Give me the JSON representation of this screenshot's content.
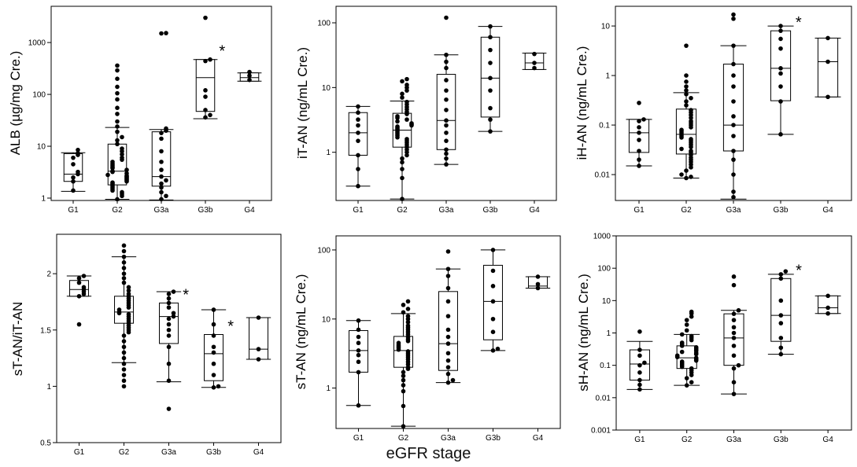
{
  "x_title": "eGFR stage",
  "chart_data": [
    {
      "type": "box",
      "ylabel": "ALB (µg/mg Cre.)",
      "yscale": "log",
      "ylim": [
        0.9,
        5000
      ],
      "yticks": [
        1,
        10,
        100,
        1000
      ],
      "ytick_labels": [
        "1",
        "10",
        "100",
        "1000"
      ],
      "categories": [
        "G1",
        "G2",
        "G3a",
        "G3b",
        "G4"
      ],
      "boxes": [
        {
          "whislo": 1.35,
          "q1": 2.1,
          "med": 2.9,
          "q3": 7.2,
          "whishi": 7.5
        },
        {
          "whislo": 0.95,
          "q1": 1.8,
          "med": 3.3,
          "q3": 11,
          "whishi": 23
        },
        {
          "whislo": 0.92,
          "q1": 1.7,
          "med": 2.6,
          "q3": 19,
          "whishi": 21
        },
        {
          "whislo": 34,
          "q1": 47,
          "med": 210,
          "q3": 470,
          "whishi": 470
        },
        {
          "whislo": 180,
          "q1": 180,
          "med": 210,
          "q3": 260,
          "whishi": 260
        }
      ],
      "points": [
        [
          1.4,
          2.1,
          2.5,
          2.9,
          3.2,
          4.5,
          6.0,
          6.8,
          7.3,
          8.5
        ],
        [
          0.95,
          1.1,
          1.2,
          1.3,
          1.4,
          1.5,
          1.6,
          1.7,
          1.8,
          1.9,
          2.0,
          2.1,
          2.2,
          2.3,
          2.4,
          2.5,
          2.6,
          2.7,
          2.8,
          3.0,
          3.2,
          3.3,
          3.5,
          3.8,
          4.0,
          4.3,
          4.6,
          5.0,
          5.5,
          6.0,
          7.0,
          8.0,
          9.0,
          11,
          13,
          15,
          19,
          24,
          30,
          42,
          55,
          80,
          105,
          140,
          200,
          290,
          360
        ],
        [
          0.95,
          1.1,
          1.3,
          1.6,
          1.9,
          2.2,
          2.6,
          3.5,
          5.0,
          8.0,
          14,
          18,
          20,
          22,
          1500,
          1520
        ],
        [
          36,
          40,
          50,
          90,
          120,
          440,
          470,
          3000
        ],
        [
          190,
          230,
          270
        ]
      ],
      "stars": [
        3
      ]
    },
    {
      "type": "box",
      "ylabel": "iT-AN (ng/mL Cre.)",
      "yscale": "log",
      "ylim": [
        0.18,
        180
      ],
      "yticks": [
        1,
        10,
        100
      ],
      "ytick_labels": [
        "1",
        "10",
        "100"
      ],
      "categories": [
        "G1",
        "G2",
        "G3a",
        "G3b",
        "G4"
      ],
      "boxes": [
        {
          "whislo": 0.3,
          "q1": 0.9,
          "med": 2.0,
          "q3": 4.1,
          "whishi": 5.1
        },
        {
          "whislo": 0.19,
          "q1": 1.2,
          "med": 2.2,
          "q3": 4.0,
          "whishi": 6.2
        },
        {
          "whislo": 0.65,
          "q1": 1.1,
          "med": 3.1,
          "q3": 16,
          "whishi": 32
        },
        {
          "whislo": 2.1,
          "q1": 3.5,
          "med": 14,
          "q3": 60,
          "whishi": 88
        },
        {
          "whislo": 19,
          "q1": 19,
          "med": 24,
          "q3": 34,
          "whishi": 34
        }
      ],
      "points": [
        [
          0.3,
          0.55,
          0.9,
          1.5,
          2.0,
          2.6,
          3.2,
          4.1,
          5.1
        ],
        [
          0.19,
          0.4,
          0.55,
          0.7,
          0.8,
          0.9,
          1.0,
          1.1,
          1.2,
          1.3,
          1.4,
          1.5,
          1.6,
          1.7,
          1.8,
          1.9,
          2.0,
          2.1,
          2.2,
          2.3,
          2.4,
          2.5,
          2.6,
          2.7,
          2.8,
          3.0,
          3.2,
          3.4,
          3.6,
          3.9,
          4.2,
          4.6,
          5.0,
          5.5,
          6.0,
          7.0,
          8.0,
          9.0,
          10,
          11,
          12.5,
          13.5
        ],
        [
          0.65,
          0.8,
          0.95,
          1.1,
          1.5,
          2.0,
          2.6,
          3.1,
          4.5,
          6.5,
          9.0,
          13,
          20,
          25,
          32,
          120
        ],
        [
          2.1,
          3.2,
          4.8,
          9.0,
          14,
          24,
          38,
          60,
          88
        ],
        [
          20,
          24,
          33
        ]
      ],
      "stars": []
    },
    {
      "type": "box",
      "ylabel": "iH-AN (ng/mL Cre.)",
      "yscale": "log",
      "ylim": [
        0.003,
        25
      ],
      "yticks": [
        0.01,
        0.1,
        1,
        10
      ],
      "ytick_labels": [
        "0.01",
        "0.1",
        "1",
        "10"
      ],
      "categories": [
        "G1",
        "G2",
        "G3a",
        "G3b",
        "G4"
      ],
      "boxes": [
        {
          "whislo": 0.015,
          "q1": 0.028,
          "med": 0.07,
          "q3": 0.13,
          "whishi": 0.13
        },
        {
          "whislo": 0.0085,
          "q1": 0.026,
          "med": 0.065,
          "q3": 0.21,
          "whishi": 0.45
        },
        {
          "whislo": 0.0032,
          "q1": 0.03,
          "med": 0.1,
          "q3": 1.7,
          "whishi": 4.0
        },
        {
          "whislo": 0.065,
          "q1": 0.31,
          "med": 1.4,
          "q3": 8.0,
          "whishi": 10
        },
        {
          "whislo": 0.37,
          "q1": 0.37,
          "med": 1.9,
          "q3": 5.7,
          "whishi": 5.7
        }
      ],
      "points": [
        [
          0.015,
          0.02,
          0.03,
          0.05,
          0.07,
          0.09,
          0.12,
          0.13,
          0.28
        ],
        [
          0.0085,
          0.009,
          0.01,
          0.012,
          0.014,
          0.016,
          0.018,
          0.02,
          0.022,
          0.025,
          0.028,
          0.03,
          0.033,
          0.036,
          0.04,
          0.044,
          0.048,
          0.052,
          0.056,
          0.06,
          0.065,
          0.07,
          0.075,
          0.08,
          0.09,
          0.1,
          0.11,
          0.12,
          0.14,
          0.16,
          0.18,
          0.2,
          0.25,
          0.3,
          0.35,
          0.42,
          0.5,
          0.6,
          0.75,
          1.0,
          4.0
        ],
        [
          0.0035,
          0.0045,
          0.01,
          0.02,
          0.03,
          0.06,
          0.1,
          0.15,
          0.3,
          0.6,
          1.0,
          1.7,
          4.0,
          14,
          17
        ],
        [
          0.065,
          0.3,
          0.6,
          1.1,
          1.4,
          3.5,
          5.5,
          8.0,
          10
        ],
        [
          0.37,
          1.9,
          5.7
        ]
      ],
      "stars": [
        3
      ]
    },
    {
      "type": "box",
      "ylabel": "sT-AN/iT-AN",
      "yscale": "linear",
      "ylim": [
        0.5,
        2.35
      ],
      "yticks": [
        0.5,
        1,
        1.5,
        2
      ],
      "ytick_labels": [
        "0.5",
        "1",
        "1.5",
        "2"
      ],
      "categories": [
        "G1",
        "G2",
        "G3a",
        "G3b",
        "G4"
      ],
      "boxes": [
        {
          "whislo": 1.8,
          "q1": 1.8,
          "med": 1.86,
          "q3": 1.94,
          "whishi": 1.98
        },
        {
          "whislo": 1.21,
          "q1": 1.56,
          "med": 1.66,
          "q3": 1.8,
          "whishi": 2.15
        },
        {
          "whislo": 1.04,
          "q1": 1.38,
          "med": 1.62,
          "q3": 1.74,
          "whishi": 1.84
        },
        {
          "whislo": 0.99,
          "q1": 1.05,
          "med": 1.29,
          "q3": 1.46,
          "whishi": 1.68
        },
        {
          "whislo": 1.24,
          "q1": 1.24,
          "med": 1.33,
          "q3": 1.61,
          "whishi": 1.61
        }
      ],
      "points": [
        [
          1.55,
          1.8,
          1.82,
          1.84,
          1.86,
          1.88,
          1.92,
          1.96,
          1.98
        ],
        [
          1.0,
          1.05,
          1.1,
          1.15,
          1.2,
          1.25,
          1.3,
          1.35,
          1.4,
          1.45,
          1.48,
          1.5,
          1.52,
          1.54,
          1.56,
          1.58,
          1.6,
          1.62,
          1.64,
          1.65,
          1.66,
          1.68,
          1.7,
          1.72,
          1.74,
          1.76,
          1.78,
          1.8,
          1.82,
          1.85,
          1.88,
          1.92,
          1.96,
          2.0,
          2.05,
          2.1,
          2.15,
          2.2,
          2.25
        ],
        [
          0.8,
          1.05,
          1.2,
          1.35,
          1.45,
          1.5,
          1.55,
          1.6,
          1.62,
          1.65,
          1.7,
          1.74,
          1.78,
          1.82,
          1.84
        ],
        [
          0.99,
          1.0,
          1.1,
          1.2,
          1.3,
          1.35,
          1.45,
          1.55,
          1.68
        ],
        [
          1.24,
          1.33,
          1.61
        ]
      ],
      "stars": [
        2,
        3
      ]
    },
    {
      "type": "box",
      "ylabel": "sT-AN (ng/mL Cre.)",
      "yscale": "log",
      "ylim": [
        0.26,
        160
      ],
      "yticks": [
        1,
        10,
        100
      ],
      "ytick_labels": [
        "1",
        "10",
        "100"
      ],
      "categories": [
        "G1",
        "G2",
        "G3a",
        "G3b",
        "G4"
      ],
      "boxes": [
        {
          "whislo": 0.56,
          "q1": 1.7,
          "med": 3.5,
          "q3": 6.8,
          "whishi": 9.5
        },
        {
          "whislo": 0.28,
          "q1": 2.0,
          "med": 3.5,
          "q3": 5.6,
          "whishi": 12
        },
        {
          "whislo": 1.2,
          "q1": 1.8,
          "med": 4.4,
          "q3": 25,
          "whishi": 53
        },
        {
          "whislo": 3.5,
          "q1": 5.0,
          "med": 18,
          "q3": 60,
          "whishi": 100
        },
        {
          "whislo": 28,
          "q1": 28,
          "med": 30,
          "q3": 41,
          "whishi": 41
        }
      ],
      "points": [
        [
          0.56,
          1.7,
          2.4,
          3.0,
          3.5,
          4.5,
          5.5,
          7.0,
          9.5
        ],
        [
          0.28,
          0.55,
          0.9,
          1.1,
          1.3,
          1.5,
          1.7,
          1.9,
          2.0,
          2.2,
          2.4,
          2.6,
          2.8,
          3.0,
          3.2,
          3.4,
          3.6,
          3.8,
          4.0,
          4.2,
          4.5,
          4.8,
          5.1,
          5.5,
          6.0,
          6.5,
          7.0,
          7.5,
          8.0,
          9.0,
          10,
          11,
          12.5,
          14,
          16,
          18
        ],
        [
          1.2,
          1.3,
          1.6,
          2.0,
          2.5,
          3.2,
          4.4,
          5.5,
          7.0,
          11,
          18,
          28,
          42,
          53,
          95
        ],
        [
          3.5,
          3.7,
          6.5,
          10,
          18,
          30,
          50,
          100
        ],
        [
          28,
          32,
          41
        ]
      ],
      "stars": []
    },
    {
      "type": "box",
      "ylabel": "sH-AN (ng/mL Cre.)",
      "yscale": "log",
      "ylim": [
        0.001,
        1000
      ],
      "yticks": [
        0.001,
        0.01,
        0.1,
        1,
        10,
        100,
        1000
      ],
      "ytick_labels": [
        "0.001",
        "0.01",
        "0.1",
        "1",
        "10",
        "100",
        "1000"
      ],
      "categories": [
        "G1",
        "G2",
        "G3a",
        "G3b",
        "G4"
      ],
      "boxes": [
        {
          "whislo": 0.018,
          "q1": 0.035,
          "med": 0.11,
          "q3": 0.3,
          "whishi": 0.55
        },
        {
          "whislo": 0.024,
          "q1": 0.08,
          "med": 0.17,
          "q3": 0.4,
          "whishi": 0.9
        },
        {
          "whislo": 0.013,
          "q1": 0.1,
          "med": 0.7,
          "q3": 3.9,
          "whishi": 5.0
        },
        {
          "whislo": 0.22,
          "q1": 0.55,
          "med": 3.5,
          "q3": 48,
          "whishi": 65
        },
        {
          "whislo": 4.0,
          "q1": 4.0,
          "med": 6.0,
          "q3": 14,
          "whishi": 14
        }
      ],
      "points": [
        [
          0.018,
          0.025,
          0.035,
          0.06,
          0.1,
          0.12,
          0.2,
          0.3,
          1.1
        ],
        [
          0.024,
          0.03,
          0.04,
          0.05,
          0.06,
          0.07,
          0.08,
          0.09,
          0.1,
          0.11,
          0.12,
          0.13,
          0.14,
          0.15,
          0.16,
          0.17,
          0.18,
          0.19,
          0.2,
          0.22,
          0.24,
          0.26,
          0.28,
          0.3,
          0.33,
          0.36,
          0.4,
          0.45,
          0.5,
          0.6,
          0.7,
          0.8,
          0.9,
          1.2,
          1.8,
          2.5,
          3.2,
          4.0,
          4.5
        ],
        [
          0.013,
          0.03,
          0.08,
          0.1,
          0.2,
          0.4,
          0.7,
          1.0,
          1.5,
          2.5,
          3.9,
          5.0,
          30,
          55
        ],
        [
          0.22,
          0.35,
          0.7,
          2.0,
          3.5,
          10,
          48,
          65,
          80
        ],
        [
          4.0,
          6.0,
          14
        ]
      ],
      "stars": [
        3
      ]
    }
  ]
}
